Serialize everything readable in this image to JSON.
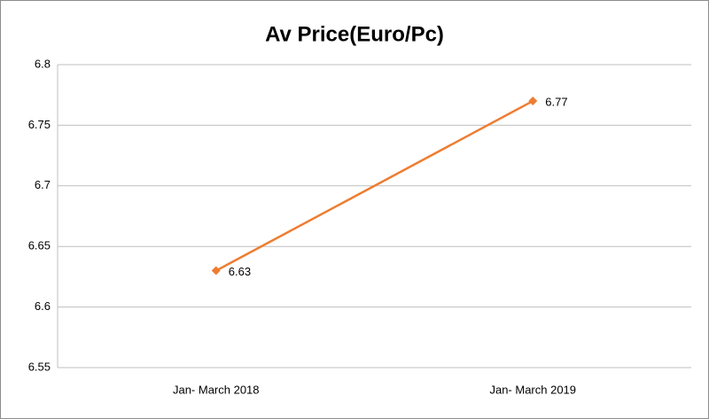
{
  "chart_data": {
    "type": "line",
    "title": "Av Price(Euro/Pc)",
    "categories": [
      "Jan- March 2018",
      "Jan- March 2019"
    ],
    "values": [
      6.63,
      6.77
    ],
    "color": "#ed7d31",
    "ylim": [
      6.55,
      6.8
    ],
    "yticks": [
      6.55,
      6.6,
      6.65,
      6.7,
      6.75,
      6.8
    ],
    "grid": true
  }
}
